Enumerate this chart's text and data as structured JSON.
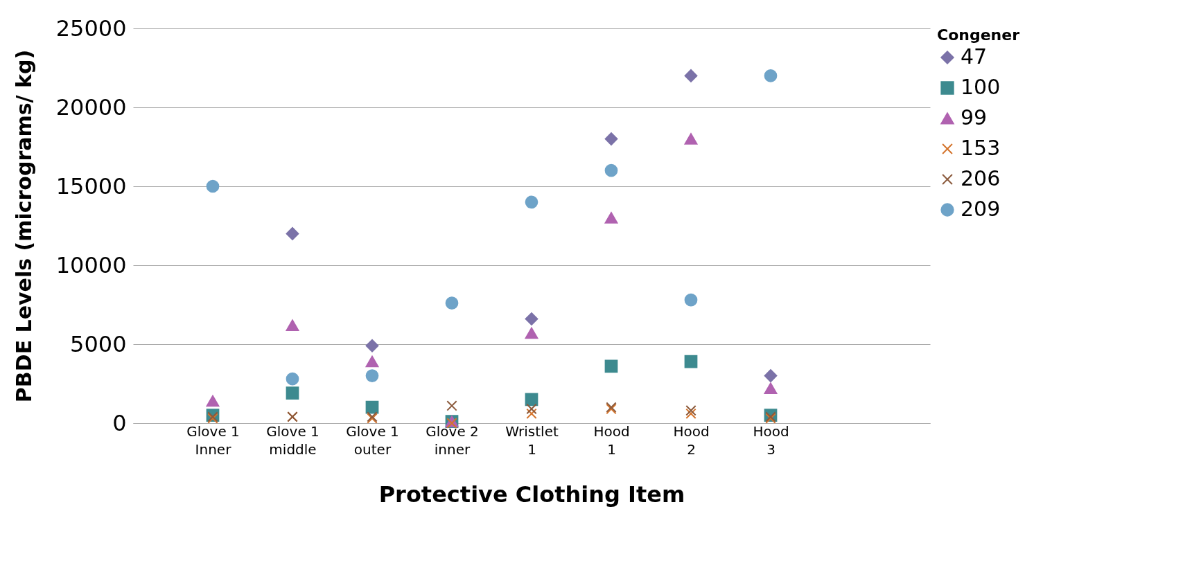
{
  "chart_data": {
    "type": "scatter",
    "xlabel": "Protective Clothing Item",
    "ylabel": "PBDE Levels (micrograms/ kg)",
    "legend_title": "Congener",
    "legend": "right",
    "grid": "y",
    "categories": [
      null,
      "Glove 1 Inner",
      "Glove 1 middle",
      "Glove 1 outer",
      "Glove 2 inner",
      "Wristlet 1",
      "Hood 1",
      "Hood 2",
      "Hood 3",
      null,
      null
    ],
    "ylim": [
      0,
      25000
    ],
    "yticks": [
      0,
      5000,
      10000,
      15000,
      20000,
      25000
    ],
    "series": [
      {
        "name": "47",
        "color": "#7b72a8",
        "marker": "diamond",
        "values": [
          null,
          null,
          12000,
          4900,
          null,
          6600,
          18000,
          22000,
          3000,
          null,
          null
        ]
      },
      {
        "name": "100",
        "color": "#3d8a8f",
        "marker": "square",
        "values": [
          null,
          500,
          1900,
          1000,
          100,
          1500,
          3600,
          3900,
          500,
          null,
          null
        ]
      },
      {
        "name": "99",
        "color": "#b062b0",
        "marker": "triangle",
        "values": [
          null,
          1400,
          6200,
          3900,
          100,
          5700,
          13000,
          18000,
          2200,
          null,
          null
        ]
      },
      {
        "name": "153",
        "color": "#d4742c",
        "marker": "cross",
        "values": [
          null,
          300,
          400,
          300,
          0,
          600,
          900,
          600,
          300,
          null,
          null
        ]
      },
      {
        "name": "206",
        "color": "#8b5a3c",
        "marker": "cross",
        "values": [
          null,
          400,
          400,
          400,
          1100,
          900,
          1000,
          800,
          400,
          null,
          null
        ]
      },
      {
        "name": "209",
        "color": "#6ea3c8",
        "marker": "circle",
        "values": [
          null,
          15000,
          2800,
          3000,
          7600,
          14000,
          16000,
          7800,
          22000,
          null,
          null
        ]
      }
    ]
  }
}
